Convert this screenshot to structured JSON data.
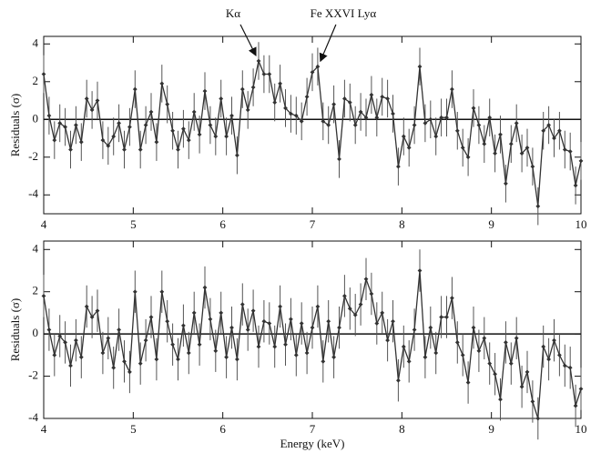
{
  "chart_data": [
    {
      "type": "line",
      "ylabel": "Residuals (σ)",
      "xlim": [
        4,
        10
      ],
      "xticks": [
        4,
        5,
        6,
        7,
        8,
        9,
        10
      ],
      "ylim": [
        -5,
        4.4
      ],
      "yticks": [
        -4,
        -2,
        0,
        2,
        4
      ],
      "reference_line": 0,
      "color": "#333333",
      "error_color": "#555555",
      "error": 1,
      "annotations": [
        {
          "text": "Kα",
          "x": 6.4,
          "y": 3.1
        },
        {
          "text": "Fe XXVI Lyα",
          "x": 7.06,
          "y": 2.8
        }
      ],
      "x": [
        4.0,
        4.06,
        4.12,
        4.18,
        4.24,
        4.3,
        4.36,
        4.42,
        4.48,
        4.54,
        4.6,
        4.66,
        4.72,
        4.78,
        4.84,
        4.9,
        4.96,
        5.02,
        5.08,
        5.14,
        5.2,
        5.26,
        5.32,
        5.38,
        5.44,
        5.5,
        5.56,
        5.62,
        5.68,
        5.74,
        5.8,
        5.86,
        5.92,
        5.98,
        6.04,
        6.1,
        6.16,
        6.22,
        6.28,
        6.34,
        6.4,
        6.46,
        6.52,
        6.58,
        6.64,
        6.7,
        6.76,
        6.82,
        6.88,
        6.94,
        7.0,
        7.06,
        7.12,
        7.18,
        7.24,
        7.3,
        7.36,
        7.42,
        7.48,
        7.54,
        7.6,
        7.66,
        7.72,
        7.78,
        7.84,
        7.9,
        7.96,
        8.02,
        8.08,
        8.14,
        8.2,
        8.26,
        8.32,
        8.38,
        8.44,
        8.5,
        8.56,
        8.62,
        8.68,
        8.74,
        8.8,
        8.86,
        8.92,
        8.98,
        9.04,
        9.1,
        9.16,
        9.22,
        9.28,
        9.34,
        9.4,
        9.46,
        9.52,
        9.58,
        9.64,
        9.7,
        9.76,
        9.82,
        9.88,
        9.94,
        10.0
      ],
      "values": [
        2.4,
        0.2,
        -1.1,
        -0.2,
        -0.4,
        -1.6,
        -0.3,
        -1.2,
        1.1,
        0.5,
        1.0,
        -1.1,
        -1.4,
        -0.9,
        -0.2,
        -1.6,
        -0.4,
        1.6,
        -1.6,
        -0.3,
        0.4,
        -1.2,
        1.9,
        0.8,
        -0.6,
        -1.6,
        -0.5,
        -1.1,
        0.4,
        -0.8,
        1.5,
        -0.3,
        -0.9,
        1.1,
        -0.9,
        0.2,
        -1.9,
        1.6,
        0.5,
        1.7,
        3.1,
        2.4,
        2.4,
        0.9,
        1.9,
        0.6,
        0.3,
        0.2,
        -0.1,
        1.2,
        2.5,
        2.8,
        -0.1,
        -0.3,
        0.8,
        -2.1,
        1.1,
        0.9,
        -0.3,
        0.4,
        0.1,
        1.3,
        0.1,
        1.2,
        1.1,
        0.3,
        -2.5,
        -0.9,
        -1.5,
        -0.3,
        2.8,
        -0.2,
        0.0,
        -0.9,
        0.1,
        0.1,
        1.6,
        -0.6,
        -1.5,
        -2.0,
        0.6,
        -0.3,
        -1.3,
        0.1,
        -1.8,
        -0.8,
        -3.4,
        -1.3,
        -0.2,
        -1.8,
        -1.5,
        -2.5,
        -4.6,
        -0.6,
        -0.3,
        -1.0,
        -0.6,
        -1.6,
        -1.7,
        -3.5,
        -2.2
      ]
    },
    {
      "type": "line",
      "ylabel": "Residuals (σ)",
      "xlabel": "Energy (keV)",
      "xlim": [
        4,
        10
      ],
      "xticks": [
        4,
        5,
        6,
        7,
        8,
        9,
        10
      ],
      "ylim": [
        -4,
        4.4
      ],
      "yticks": [
        -4,
        -2,
        0,
        2,
        4
      ],
      "reference_line": 0,
      "color": "#333333",
      "error_color": "#555555",
      "error": 1,
      "x": [
        4.0,
        4.06,
        4.12,
        4.18,
        4.24,
        4.3,
        4.36,
        4.42,
        4.48,
        4.54,
        4.6,
        4.66,
        4.72,
        4.78,
        4.84,
        4.9,
        4.96,
        5.02,
        5.08,
        5.14,
        5.2,
        5.26,
        5.32,
        5.38,
        5.44,
        5.5,
        5.56,
        5.62,
        5.68,
        5.74,
        5.8,
        5.86,
        5.92,
        5.98,
        6.04,
        6.1,
        6.16,
        6.22,
        6.28,
        6.34,
        6.4,
        6.46,
        6.52,
        6.58,
        6.64,
        6.7,
        6.76,
        6.82,
        6.88,
        6.94,
        7.0,
        7.06,
        7.12,
        7.18,
        7.24,
        7.3,
        7.36,
        7.42,
        7.48,
        7.54,
        7.6,
        7.66,
        7.72,
        7.78,
        7.84,
        7.9,
        7.96,
        8.02,
        8.08,
        8.14,
        8.2,
        8.26,
        8.32,
        8.38,
        8.44,
        8.5,
        8.56,
        8.62,
        8.68,
        8.74,
        8.8,
        8.86,
        8.92,
        8.98,
        9.04,
        9.1,
        9.16,
        9.22,
        9.28,
        9.34,
        9.4,
        9.46,
        9.52,
        9.58,
        9.64,
        9.7,
        9.76,
        9.82,
        9.88,
        9.94,
        10.0
      ],
      "values": [
        1.8,
        0.2,
        -1.0,
        -0.1,
        -0.4,
        -1.5,
        -0.3,
        -1.1,
        1.3,
        0.8,
        1.1,
        -0.9,
        -0.2,
        -1.6,
        0.2,
        -1.3,
        -1.8,
        2.0,
        -1.4,
        -0.3,
        0.8,
        -1.2,
        2.0,
        0.6,
        -0.5,
        -1.2,
        0.4,
        -0.9,
        1.0,
        -0.5,
        2.2,
        0.7,
        -0.8,
        1.0,
        -1.1,
        0.3,
        -1.2,
        1.4,
        0.2,
        1.1,
        -0.6,
        0.6,
        0.5,
        -0.6,
        1.3,
        -0.5,
        0.7,
        -1.0,
        0.5,
        -0.9,
        0.3,
        1.3,
        -1.3,
        0.6,
        -1.1,
        0.3,
        1.8,
        1.2,
        0.9,
        1.4,
        2.6,
        1.9,
        0.5,
        1.0,
        -0.3,
        0.6,
        -2.2,
        -0.6,
        -1.3,
        0.2,
        3.0,
        -1.1,
        0.3,
        -0.9,
        0.8,
        0.8,
        1.7,
        -0.4,
        -1.0,
        -2.3,
        0.3,
        -0.8,
        -0.2,
        -1.4,
        -1.9,
        -3.1,
        -0.4,
        -1.4,
        -0.2,
        -2.5,
        -1.8,
        -3.2,
        -4.0,
        -0.6,
        -1.2,
        -0.3,
        -1.0,
        -1.5,
        -1.6,
        -3.4,
        -2.6
      ]
    }
  ]
}
